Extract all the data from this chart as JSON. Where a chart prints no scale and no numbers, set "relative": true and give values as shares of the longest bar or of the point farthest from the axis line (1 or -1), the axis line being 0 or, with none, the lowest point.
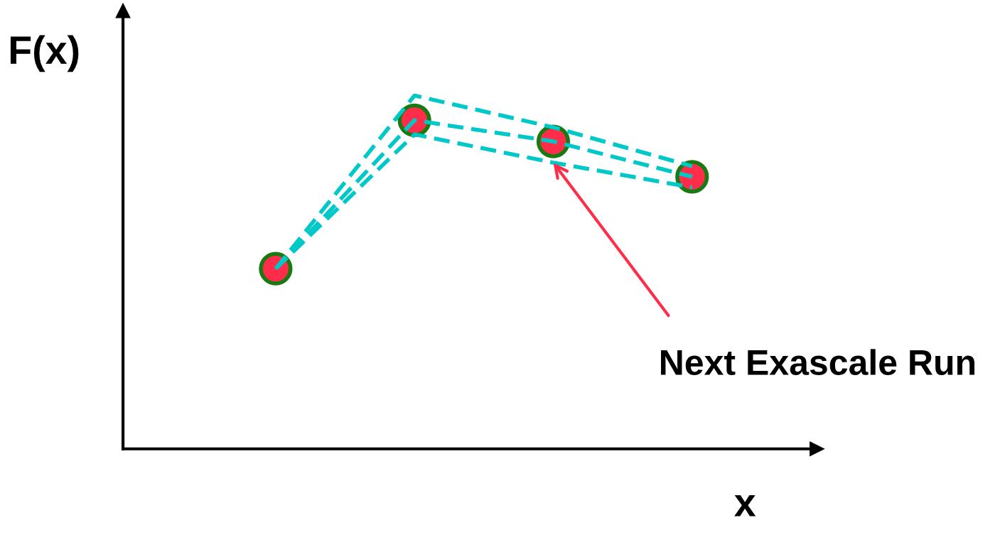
{
  "chart_data": {
    "type": "line",
    "relative": true,
    "xlabel": "x",
    "ylabel": "F(x)",
    "categories": [
      null,
      null,
      null,
      null
    ],
    "series": [
      {
        "color": "#00c8c8",
        "line_style": "dashed",
        "values": [
          0.51,
          1.0,
          0.91,
          0.8
        ]
      },
      {
        "color": "#00c8c8",
        "line_style": "dashed",
        "marker": "circle",
        "colors": [
          "#ff2d4a",
          "#ff2d4a",
          "#ff2d4a",
          "#ff2d4a"
        ],
        "values": [
          0.51,
          0.93,
          0.87,
          0.77
        ]
      },
      {
        "color": "#00c8c8",
        "line_style": "dashed",
        "values": [
          0.51,
          0.89,
          0.81,
          0.74
        ]
      }
    ],
    "annotations": [
      "Next Exascale Run"
    ]
  }
}
